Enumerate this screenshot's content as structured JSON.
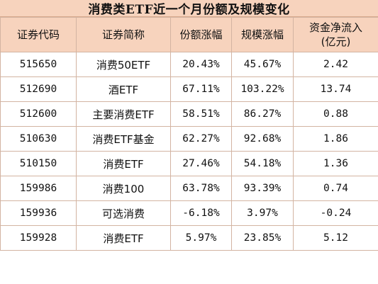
{
  "title": "消费类ETF近一个月份额及规模变化",
  "table": {
    "headers": [
      "证券代码",
      "证券简称",
      "份额涨幅",
      "规模涨幅"
    ],
    "header_last_line1": "资金净流入",
    "header_last_line2": "(亿元)",
    "rows": [
      {
        "code": "515650",
        "name": "消费50ETF",
        "share_change": "20.43%",
        "scale_change": "45.67%",
        "net_inflow": "2.42"
      },
      {
        "code": "512690",
        "name": "酒ETF",
        "share_change": "67.11%",
        "scale_change": "103.22%",
        "net_inflow": "13.74"
      },
      {
        "code": "512600",
        "name": "主要消费ETF",
        "share_change": "58.51%",
        "scale_change": "86.27%",
        "net_inflow": "0.88"
      },
      {
        "code": "510630",
        "name": "消费ETF基金",
        "share_change": "62.27%",
        "scale_change": "92.68%",
        "net_inflow": "1.86"
      },
      {
        "code": "510150",
        "name": "消费ETF",
        "share_change": "27.46%",
        "scale_change": "54.18%",
        "net_inflow": "1.36"
      },
      {
        "code": "159986",
        "name": "消费100",
        "share_change": "63.78%",
        "scale_change": "93.39%",
        "net_inflow": "0.74"
      },
      {
        "code": "159936",
        "name": "可选消费",
        "share_change": "-6.18%",
        "scale_change": "3.97%",
        "net_inflow": "-0.24"
      },
      {
        "code": "159928",
        "name": "消费ETF",
        "share_change": "5.97%",
        "scale_change": "23.85%",
        "net_inflow": "5.12"
      }
    ]
  },
  "colors": {
    "header_fill": "#f7d3bd",
    "border": "#d3b4a2"
  }
}
